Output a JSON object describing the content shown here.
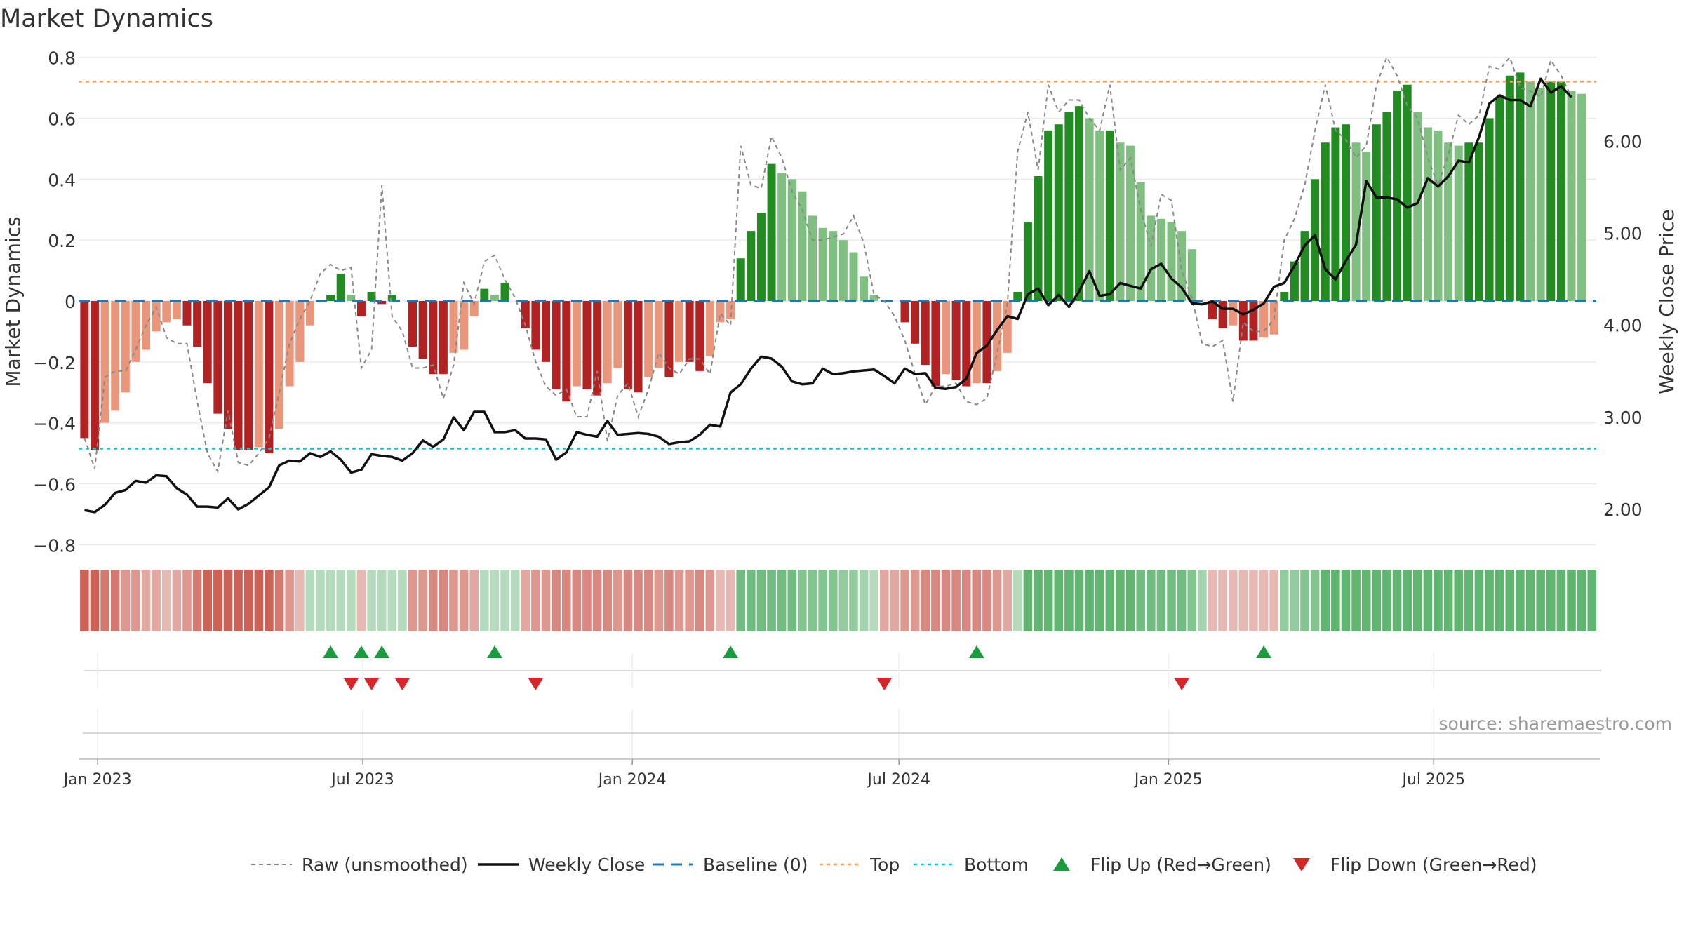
{
  "chart_data": {
    "type": "bar",
    "title": "Market Dynamics",
    "ylabel": "Market Dynamics",
    "ylabel_right": "Weekly Close Price",
    "source": "source: sharemaestro.com",
    "ylim": [
      -0.82,
      0.82
    ],
    "ylim_right": [
      1.55,
      6.98
    ],
    "yticks": [
      -0.8,
      -0.6,
      -0.4,
      -0.2,
      0,
      0.2,
      0.4,
      0.6,
      0.8
    ],
    "yticks_right": [
      2.0,
      3.0,
      4.0,
      5.0,
      6.0
    ],
    "yticklabels": [
      "−0.8",
      "−0.6",
      "−0.4",
      "−0.2",
      "0",
      "0.2",
      "0.4",
      "0.6",
      "0.8"
    ],
    "yticklabels_right": [
      "2.00",
      "3.00",
      "4.00",
      "5.00",
      "6.00"
    ],
    "xticklabels": [
      "Jan 2023",
      "Jul 2023",
      "Jan 2024",
      "Jul 2024",
      "Jan 2025",
      "Jul 2025"
    ],
    "x_start": "2022-12-19",
    "x_end": "2025-10-20",
    "x_ticks_dates": [
      "2023-01-01",
      "2023-07-01",
      "2024-01-01",
      "2024-07-01",
      "2025-01-01",
      "2025-07-01"
    ],
    "first_week": "2022-12-23",
    "top_line": 0.72,
    "bottom_line": -0.485,
    "baseline": 0,
    "grid": true,
    "legend_position": "bottom",
    "colors": {
      "strong_red": "#b22222",
      "weak_red": "#e9967a",
      "strong_green": "#228b22",
      "weak_green": "#7fbf7f",
      "close": "#111111",
      "raw": "#888888",
      "baseline": "#1f77b4",
      "top": "#f4a261",
      "bottom": "#17becf",
      "flip_up": "#1a9c3e",
      "flip_down": "#d62728"
    },
    "series": [
      {
        "name": "Market Dynamics",
        "values": [
          -0.45,
          -0.49,
          -0.4,
          -0.36,
          -0.3,
          -0.2,
          -0.16,
          -0.1,
          -0.07,
          -0.06,
          -0.08,
          -0.15,
          -0.27,
          -0.37,
          -0.42,
          -0.49,
          -0.49,
          -0.48,
          -0.5,
          -0.42,
          -0.28,
          -0.2,
          -0.08,
          0.0,
          0.02,
          0.09,
          0.02,
          -0.05,
          0.03,
          -0.01,
          0.02,
          0.0,
          -0.15,
          -0.19,
          -0.24,
          -0.24,
          -0.17,
          -0.16,
          -0.05,
          0.04,
          0.02,
          0.06,
          0.0,
          -0.09,
          -0.16,
          -0.2,
          -0.29,
          -0.33,
          -0.28,
          -0.29,
          -0.31,
          -0.27,
          -0.22,
          -0.29,
          -0.3,
          -0.25,
          -0.22,
          -0.25,
          -0.2,
          -0.2,
          -0.23,
          -0.18,
          -0.07,
          -0.06,
          0.14,
          0.23,
          0.29,
          0.45,
          0.42,
          0.4,
          0.36,
          0.28,
          0.24,
          0.23,
          0.2,
          0.16,
          0.08,
          0.02,
          0.0,
          0.0,
          -0.07,
          -0.14,
          -0.21,
          -0.28,
          -0.24,
          -0.26,
          -0.28,
          -0.27,
          -0.27,
          -0.23,
          -0.17,
          0.03,
          0.26,
          0.41,
          0.56,
          0.58,
          0.62,
          0.64,
          0.6,
          0.56,
          0.56,
          0.52,
          0.51,
          0.39,
          0.28,
          0.27,
          0.26,
          0.23,
          0.17,
          0.0,
          -0.06,
          -0.09,
          -0.08,
          -0.13,
          -0.13,
          -0.12,
          -0.11,
          0.03,
          0.13,
          0.23,
          0.4,
          0.52,
          0.57,
          0.58,
          0.52,
          0.49,
          0.58,
          0.62,
          0.69,
          0.71,
          0.62,
          0.57,
          0.56,
          0.52,
          0.51,
          0.52,
          0.52,
          0.6,
          0.67,
          0.74,
          0.75,
          0.72,
          0.7,
          0.72,
          0.72,
          0.69,
          0.68
        ]
      },
      {
        "name": "Raw (unsmoothed)",
        "values": [
          -0.45,
          -0.55,
          -0.25,
          -0.23,
          -0.23,
          -0.16,
          -0.08,
          -0.02,
          -0.12,
          -0.14,
          -0.14,
          -0.33,
          -0.5,
          -0.56,
          -0.36,
          -0.53,
          -0.54,
          -0.5,
          -0.45,
          -0.3,
          -0.14,
          -0.06,
          0.0,
          0.09,
          0.12,
          0.1,
          0.11,
          -0.22,
          -0.16,
          0.38,
          -0.05,
          -0.1,
          -0.22,
          -0.22,
          -0.21,
          -0.32,
          -0.21,
          0.06,
          -0.01,
          0.13,
          0.15,
          0.07,
          0.01,
          -0.08,
          -0.2,
          -0.28,
          -0.31,
          -0.29,
          -0.38,
          -0.38,
          -0.23,
          -0.46,
          -0.31,
          -0.27,
          -0.38,
          -0.29,
          -0.17,
          -0.22,
          -0.24,
          -0.19,
          -0.19,
          -0.24,
          -0.04,
          -0.08,
          0.51,
          0.38,
          0.37,
          0.54,
          0.47,
          0.36,
          0.3,
          0.2,
          0.2,
          0.21,
          0.22,
          0.28,
          0.19,
          0.02,
          0.0,
          -0.05,
          -0.13,
          -0.24,
          -0.34,
          -0.28,
          -0.28,
          -0.27,
          -0.33,
          -0.34,
          -0.32,
          -0.17,
          -0.01,
          0.49,
          0.62,
          0.43,
          0.71,
          0.62,
          0.66,
          0.66,
          0.6,
          0.56,
          0.71,
          0.43,
          0.47,
          0.3,
          0.18,
          0.35,
          0.33,
          0.1,
          0.01,
          -0.14,
          -0.15,
          -0.13,
          -0.33,
          -0.07,
          -0.1,
          -0.1,
          -0.06,
          0.2,
          0.27,
          0.38,
          0.56,
          0.71,
          0.56,
          0.53,
          0.47,
          0.51,
          0.71,
          0.8,
          0.74,
          0.64,
          0.6,
          0.47,
          0.38,
          0.48,
          0.61,
          0.58,
          0.61,
          0.77,
          0.76,
          0.8,
          0.7,
          0.69,
          0.67,
          0.79,
          0.74,
          0.67
        ]
      },
      {
        "name": "Weekly Close",
        "values": [
          1.99,
          1.97,
          2.05,
          2.18,
          2.21,
          2.31,
          2.29,
          2.37,
          2.36,
          2.23,
          2.16,
          2.03,
          2.03,
          2.02,
          2.12,
          2.0,
          2.06,
          2.15,
          2.24,
          2.48,
          2.53,
          2.52,
          2.61,
          2.57,
          2.63,
          2.54,
          2.4,
          2.43,
          2.6,
          2.58,
          2.57,
          2.53,
          2.61,
          2.75,
          2.68,
          2.76,
          3.0,
          2.86,
          3.06,
          3.06,
          2.84,
          2.84,
          2.86,
          2.77,
          2.77,
          2.76,
          2.54,
          2.62,
          2.84,
          2.81,
          2.79,
          2.96,
          2.81,
          2.82,
          2.83,
          2.82,
          2.79,
          2.71,
          2.73,
          2.74,
          2.81,
          2.92,
          2.9,
          3.27,
          3.36,
          3.53,
          3.66,
          3.64,
          3.55,
          3.39,
          3.36,
          3.37,
          3.53,
          3.47,
          3.48,
          3.5,
          3.51,
          3.52,
          3.45,
          3.37,
          3.53,
          3.47,
          3.48,
          3.32,
          3.31,
          3.33,
          3.42,
          3.7,
          3.78,
          3.95,
          4.1,
          4.07,
          4.34,
          4.4,
          4.22,
          4.33,
          4.2,
          4.37,
          4.59,
          4.32,
          4.34,
          4.46,
          4.43,
          4.4,
          4.61,
          4.67,
          4.51,
          4.41,
          4.24,
          4.23,
          4.26,
          4.18,
          4.18,
          4.12,
          4.17,
          4.24,
          4.42,
          4.46,
          4.65,
          4.87,
          4.98,
          4.61,
          4.5,
          4.7,
          4.88,
          5.57,
          5.39,
          5.39,
          5.37,
          5.28,
          5.33,
          5.6,
          5.51,
          5.62,
          5.79,
          5.77,
          6.05,
          6.41,
          6.5,
          6.45,
          6.45,
          6.38,
          6.68,
          6.53,
          6.6,
          6.48
        ]
      }
    ],
    "state_strip": [
      -0.75,
      -0.75,
      -0.6,
      -0.6,
      -0.4,
      -0.4,
      -0.3,
      -0.3,
      -0.2,
      -0.3,
      -0.4,
      -0.6,
      -0.75,
      -0.75,
      -0.75,
      -0.75,
      -0.75,
      -0.75,
      -0.75,
      -0.6,
      -0.4,
      -0.2,
      0.2,
      0.2,
      0.2,
      0.2,
      0.2,
      -0.2,
      0.2,
      0.2,
      0.2,
      0.2,
      -0.4,
      -0.4,
      -0.5,
      -0.5,
      -0.4,
      -0.4,
      -0.3,
      0.2,
      0.2,
      0.2,
      0.2,
      -0.3,
      -0.4,
      -0.4,
      -0.5,
      -0.5,
      -0.5,
      -0.5,
      -0.5,
      -0.5,
      -0.4,
      -0.5,
      -0.5,
      -0.5,
      -0.4,
      -0.5,
      -0.4,
      -0.4,
      -0.5,
      -0.4,
      -0.2,
      -0.2,
      0.6,
      0.6,
      0.6,
      0.6,
      0.6,
      0.6,
      0.5,
      0.5,
      0.5,
      0.5,
      0.4,
      0.4,
      0.3,
      0.2,
      -0.3,
      -0.3,
      -0.4,
      -0.4,
      -0.5,
      -0.5,
      -0.5,
      -0.5,
      -0.5,
      -0.5,
      -0.5,
      -0.4,
      -0.3,
      0.2,
      0.7,
      0.7,
      0.7,
      0.7,
      0.7,
      0.7,
      0.7,
      0.7,
      0.7,
      0.7,
      0.7,
      0.6,
      0.6,
      0.6,
      0.6,
      0.6,
      0.5,
      0.3,
      -0.2,
      -0.2,
      -0.2,
      -0.2,
      -0.2,
      -0.2,
      -0.2,
      0.4,
      0.4,
      0.5,
      0.5,
      0.7,
      0.7,
      0.7,
      0.7,
      0.7,
      0.7,
      0.7,
      0.7,
      0.7,
      0.7,
      0.7,
      0.7,
      0.7,
      0.7,
      0.7,
      0.7,
      0.7,
      0.7,
      0.7,
      0.7,
      0.7,
      0.7,
      0.7,
      0.7,
      0.7,
      0.7,
      0.7
    ],
    "flip_up": [
      "2023-06-09",
      "2023-06-30",
      "2023-07-14",
      "2023-09-29",
      "2024-03-08",
      "2024-08-23",
      "2025-03-07"
    ],
    "flip_down": [
      "2023-06-23",
      "2023-07-07",
      "2023-07-28",
      "2023-10-27",
      "2024-06-21",
      "2025-01-10"
    ],
    "legend": [
      "Raw (unsmoothed)",
      "Weekly Close",
      "Baseline (0)",
      "Top",
      "Bottom",
      "Flip Up (Red→Green)",
      "Flip Down (Green→Red)"
    ]
  }
}
